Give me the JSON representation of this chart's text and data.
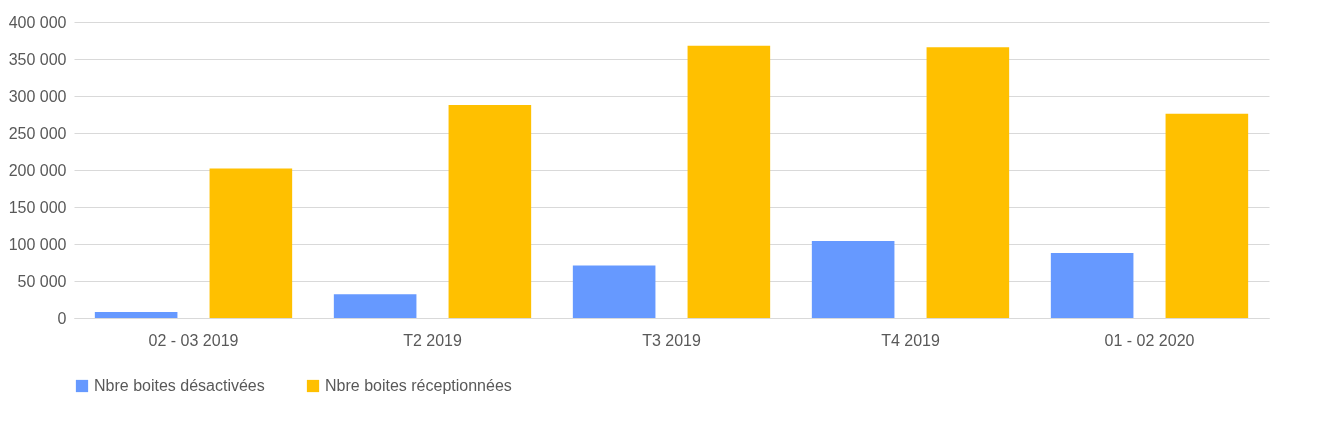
{
  "chart_data": {
    "type": "bar",
    "categories": [
      "02 - 03 2019",
      "T2 2019",
      "T3 2019",
      "T4 2019",
      "01 - 02 2020"
    ],
    "series": [
      {
        "name": "Nbre boites désactivées",
        "color": "#6699ff",
        "values": [
          8000,
          32000,
          71000,
          104000,
          88000
        ]
      },
      {
        "name": "Nbre boites réceptionnées",
        "color": "#ffc000",
        "values": [
          202000,
          288000,
          368000,
          366000,
          276000
        ]
      }
    ],
    "ylim": [
      0,
      400000
    ],
    "yticks": [
      {
        "value": 0,
        "label": "0"
      },
      {
        "value": 50000,
        "label": "50 000"
      },
      {
        "value": 100000,
        "label": "100 000"
      },
      {
        "value": 150000,
        "label": "150 000"
      },
      {
        "value": 200000,
        "label": "200 000"
      },
      {
        "value": 250000,
        "label": "250 000"
      },
      {
        "value": 300000,
        "label": "300 000"
      },
      {
        "value": 350000,
        "label": "350 000"
      },
      {
        "value": 400000,
        "label": "400 000"
      }
    ],
    "grid": "y",
    "legend": "bottom"
  }
}
